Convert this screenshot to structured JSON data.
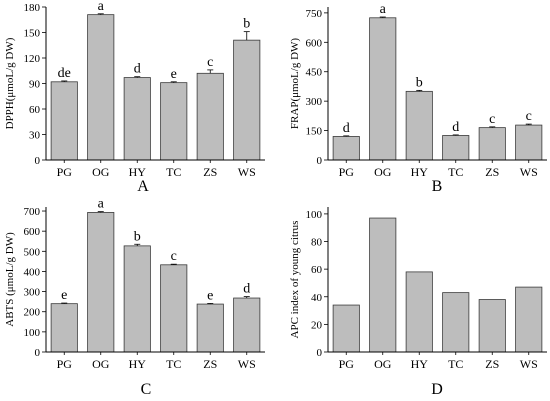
{
  "colors": {
    "bar_fill": "#bdbdbd",
    "bar_stroke": "#3a3a3a",
    "axis": "#000000"
  },
  "chart_data": [
    {
      "type": "bar",
      "panel_label": "A",
      "ylabel": "DPPH(μmoL/g DW)",
      "categories": [
        "PG",
        "OG",
        "HY",
        "TC",
        "ZS",
        "WS"
      ],
      "values": [
        92,
        171,
        97,
        91,
        102,
        141
      ],
      "errors": [
        1,
        1,
        1,
        1,
        4,
        10
      ],
      "letters": [
        "de",
        "a",
        "d",
        "e",
        "c",
        "b"
      ],
      "ylim": [
        0,
        180
      ],
      "yticks": [
        0,
        30,
        60,
        90,
        120,
        150,
        180
      ],
      "grid": false
    },
    {
      "type": "bar",
      "panel_label": "B",
      "ylabel": "FRAP(μmoL/g DW)",
      "categories": [
        "PG",
        "OG",
        "HY",
        "TC",
        "ZS",
        "WS"
      ],
      "values": [
        120,
        725,
        350,
        125,
        165,
        178
      ],
      "errors": [
        3,
        4,
        5,
        3,
        4,
        5
      ],
      "letters": [
        "d",
        "a",
        "b",
        "d",
        "c",
        "c"
      ],
      "ylim": [
        0,
        780
      ],
      "yticks": [
        0,
        150,
        300,
        450,
        600,
        750
      ],
      "grid": false
    },
    {
      "type": "bar",
      "panel_label": "C",
      "ylabel": "ABTS (μmoL/g DW)",
      "categories": [
        "PG",
        "OG",
        "HY",
        "TC",
        "ZS",
        "WS"
      ],
      "values": [
        240,
        693,
        527,
        433,
        238,
        268
      ],
      "errors": [
        3,
        4,
        8,
        3,
        3,
        7
      ],
      "letters": [
        "e",
        "a",
        "b",
        "c",
        "e",
        "d"
      ],
      "ylim": [
        0,
        720
      ],
      "yticks": [
        0,
        100,
        200,
        300,
        400,
        500,
        600,
        700
      ],
      "grid": false
    },
    {
      "type": "bar",
      "panel_label": "D",
      "ylabel": "APC index of young citrus",
      "categories": [
        "PG",
        "OG",
        "HY",
        "TC",
        "ZS",
        "WS"
      ],
      "values": [
        34,
        97,
        58,
        43,
        38,
        47
      ],
      "errors": [],
      "letters": [],
      "ylim": [
        0,
        105
      ],
      "yticks": [
        0,
        20,
        40,
        60,
        80,
        100
      ],
      "grid": false
    }
  ]
}
